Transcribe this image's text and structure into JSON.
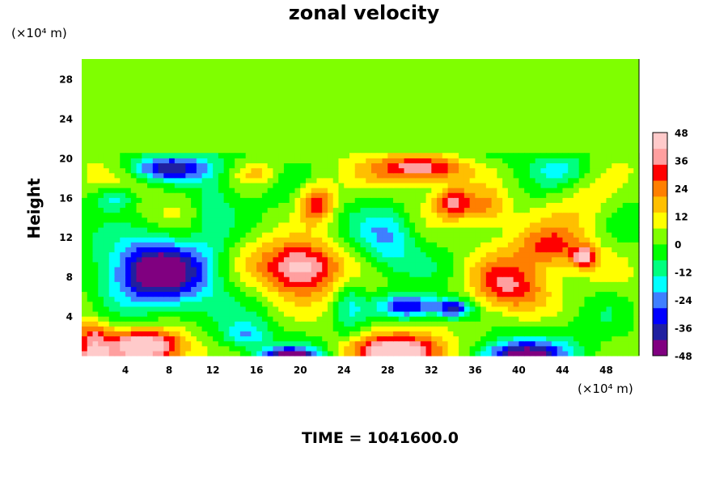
{
  "chart_data": {
    "type": "heatmap",
    "title": "zonal velocity",
    "ylabel": "Height",
    "xunit": "(×10⁴ m)",
    "yunit": "(×10⁴ m)",
    "footer": "TIME = 1041600.0",
    "xlim": [
      0,
      51
    ],
    "ylim": [
      0,
      30
    ],
    "xticks": [
      4,
      8,
      12,
      16,
      20,
      24,
      28,
      32,
      36,
      40,
      44,
      48
    ],
    "yticks": [
      4,
      8,
      12,
      16,
      20,
      24,
      28
    ],
    "colorbar": {
      "min": -48,
      "max": 48,
      "ticks": [
        48,
        36,
        24,
        12,
        0,
        -12,
        -24,
        -36,
        -48
      ],
      "colors": [
        "#800080",
        "#2020a0",
        "#0000ff",
        "#3f7fff",
        "#00ffff",
        "#00ff7f",
        "#00ff00",
        "#7fff00",
        "#ffff00",
        "#ffbf00",
        "#ff7f00",
        "#ff0000",
        "#ff9f9f",
        "#ffcaca"
      ]
    },
    "upper_layer": {
      "from": 20.5,
      "to": 30,
      "value": 0
    },
    "features": [
      {
        "x": 7,
        "y": 8.5,
        "sx": 4.5,
        "sy": 3.5,
        "value": -50
      },
      {
        "x": 8,
        "y": 19,
        "sx": 3.5,
        "sy": 1.2,
        "value": -38
      },
      {
        "x": 3,
        "y": 16,
        "sx": 2,
        "sy": 1.2,
        "value": -20
      },
      {
        "x": 12,
        "y": 14,
        "sx": 2,
        "sy": 5,
        "value": -14
      },
      {
        "x": 20,
        "y": 9,
        "sx": 3.5,
        "sy": 2.6,
        "value": 44
      },
      {
        "x": 21.5,
        "y": 15.5,
        "sx": 1.6,
        "sy": 2,
        "value": 34
      },
      {
        "x": 31,
        "y": 19,
        "sx": 4,
        "sy": 1.3,
        "value": 38
      },
      {
        "x": 34,
        "y": 15.5,
        "sx": 1.6,
        "sy": 1.5,
        "value": 30
      },
      {
        "x": 28,
        "y": 12,
        "sx": 2.5,
        "sy": 3,
        "value": -20
      },
      {
        "x": 30,
        "y": 5,
        "sx": 2.8,
        "sy": 1.3,
        "value": -42
      },
      {
        "x": 34,
        "y": 4.8,
        "sx": 1.5,
        "sy": 0.9,
        "value": -38
      },
      {
        "x": 39,
        "y": 7,
        "sx": 3.5,
        "sy": 2.8,
        "value": 36
      },
      {
        "x": 43,
        "y": 11,
        "sx": 3,
        "sy": 2,
        "value": 24
      },
      {
        "x": 46,
        "y": 10,
        "sx": 1,
        "sy": 1,
        "value": 38
      },
      {
        "x": 46,
        "y": 15,
        "sx": 3,
        "sy": 3,
        "value": 14
      },
      {
        "x": 44,
        "y": 19,
        "sx": 2.5,
        "sy": 1.5,
        "value": -14
      },
      {
        "x": 48,
        "y": 5,
        "sx": 3,
        "sy": 3,
        "value": -5
      },
      {
        "x": 6,
        "y": 1,
        "sx": 3.5,
        "sy": 1.6,
        "value": 50
      },
      {
        "x": 1,
        "y": 0,
        "sx": 1.5,
        "sy": 1,
        "value": 36
      },
      {
        "x": 29,
        "y": 0.5,
        "sx": 4,
        "sy": 1.6,
        "value": 52
      },
      {
        "x": 40,
        "y": 0,
        "sx": 4,
        "sy": 1.6,
        "value": -52
      },
      {
        "x": 19,
        "y": 0,
        "sx": 2.5,
        "sy": 0.8,
        "value": -52
      },
      {
        "x": 15,
        "y": 2,
        "sx": 2,
        "sy": 1.5,
        "value": -20
      },
      {
        "x": 1,
        "y": 2,
        "sx": 1.5,
        "sy": 1.5,
        "value": 26
      },
      {
        "x": 24.5,
        "y": 5,
        "sx": 1.5,
        "sy": 3,
        "value": -16
      },
      {
        "x": 37,
        "y": 15,
        "sx": 2,
        "sy": 2,
        "value": 18
      },
      {
        "x": 16,
        "y": 18.5,
        "sx": 2,
        "sy": 1.2,
        "value": 14
      }
    ]
  }
}
